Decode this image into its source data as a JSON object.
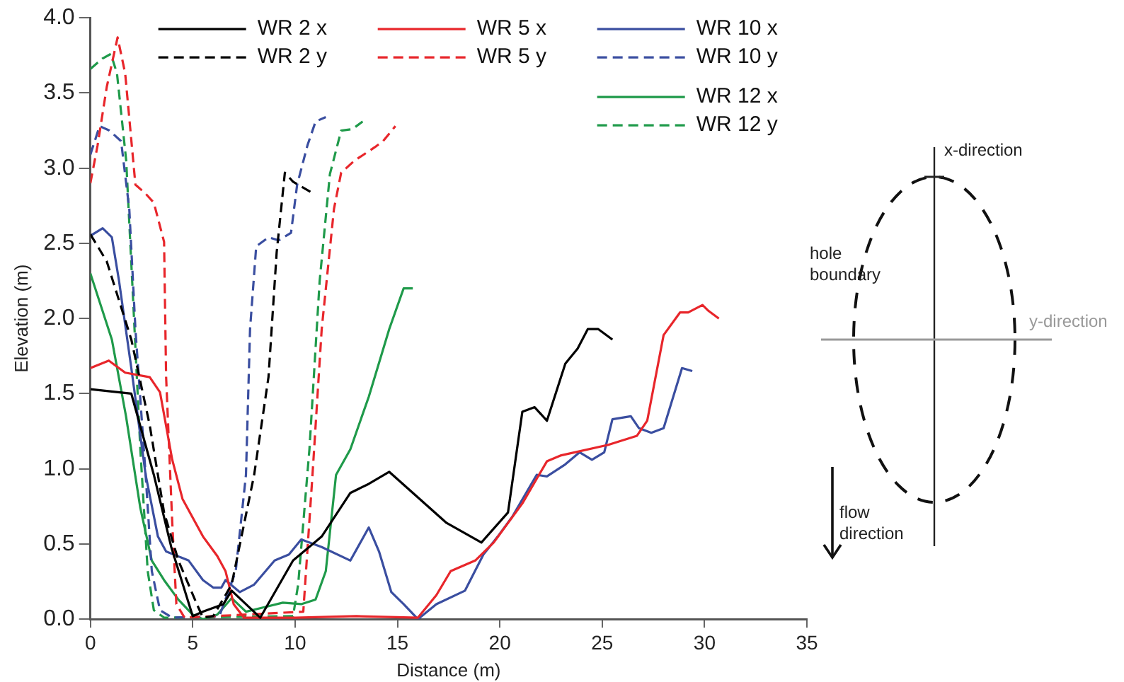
{
  "chart_data": {
    "type": "line",
    "xlabel": "Distance (m)",
    "ylabel": "Elevation (m)",
    "xlim": [
      0,
      35
    ],
    "xticks": [
      0,
      5,
      10,
      15,
      20,
      25,
      30,
      35
    ],
    "ylim": [
      0,
      4
    ],
    "yticks": [
      {
        "value": 0,
        "label": "0.0"
      },
      {
        "value": 0.5,
        "label": "0.5"
      },
      {
        "value": 1,
        "label": "1.0"
      },
      {
        "value": 1.5,
        "label": "1.5"
      },
      {
        "value": 2,
        "label": "2.0"
      },
      {
        "value": 2.5,
        "label": "2.5"
      },
      {
        "value": 3,
        "label": "3.0"
      },
      {
        "value": 3.5,
        "label": "3.5"
      },
      {
        "value": 4,
        "label": "4.0"
      }
    ],
    "grid": false,
    "legend": "top",
    "marker": "none",
    "annotations": [
      "x-direction",
      "hole boundary",
      "y-direction",
      "flow direction"
    ],
    "series": [
      {
        "name": "WR 2 x",
        "color": "#000000",
        "line_style": "solid",
        "x": [
          0,
          2,
          3.1,
          3.95,
          5,
          5.5,
          6.5,
          6.9,
          8.3,
          9.9,
          11.3,
          12.7,
          13.6,
          14.6,
          17.4,
          19.1,
          20.4,
          21.1,
          21.7,
          22.3,
          23.2,
          23.8,
          24.3,
          24.8,
          25.5
        ],
        "values": [
          1.53,
          1.5,
          0.96,
          0.48,
          0.02,
          0.05,
          0.1,
          0.19,
          0.01,
          0.39,
          0.55,
          0.84,
          0.9,
          0.98,
          0.64,
          0.51,
          0.71,
          1.38,
          1.41,
          1.32,
          1.7,
          1.8,
          1.93,
          1.93,
          1.86
        ]
      },
      {
        "name": "WR 2 y",
        "color": "#000000",
        "line_style": "dashed",
        "x": [
          0,
          0.8,
          2,
          2.9,
          3.6,
          4.3,
          5.2,
          5.5,
          6,
          6.9,
          8,
          8.7,
          9.1,
          9.5,
          9.9,
          10.9
        ],
        "values": [
          2.56,
          2.38,
          1.86,
          1.29,
          0.71,
          0.39,
          0.1,
          0.01,
          0.02,
          0.23,
          0.96,
          1.61,
          2.44,
          2.97,
          2.91,
          2.83
        ]
      },
      {
        "name": "WR 5 x",
        "color": "#e8262b",
        "line_style": "solid",
        "x": [
          0,
          0.9,
          1.7,
          2.9,
          3.4,
          4,
          4.5,
          5.5,
          6.2,
          6.6,
          7,
          7.5,
          10,
          13,
          16,
          16.9,
          17.6,
          18.8,
          19.7,
          21.1,
          22.3,
          23,
          25.3,
          26.7,
          27.2,
          28,
          28.8,
          29.2,
          29.9,
          30.2,
          30.7
        ],
        "values": [
          1.67,
          1.72,
          1.64,
          1.61,
          1.51,
          1.06,
          0.8,
          0.55,
          0.42,
          0.32,
          0.1,
          0.01,
          0.01,
          0.02,
          0.01,
          0.16,
          0.32,
          0.39,
          0.51,
          0.77,
          1.05,
          1.09,
          1.16,
          1.22,
          1.32,
          1.89,
          2.04,
          2.04,
          2.09,
          2.05,
          2
        ]
      },
      {
        "name": "WR 5 y",
        "color": "#e8262b",
        "line_style": "dashed",
        "x": [
          0,
          0.35,
          0.8,
          1.33,
          1.7,
          2.2,
          2.7,
          3.1,
          3.6,
          3.7,
          4,
          4.2,
          4.6,
          10.4,
          10.85,
          11.3,
          11.9,
          12.25,
          12.9,
          13.9,
          14.3,
          14.9
        ],
        "values": [
          2.9,
          3.15,
          3.54,
          3.87,
          3.63,
          2.89,
          2.83,
          2.77,
          2.51,
          1.61,
          0.64,
          0.1,
          0.01,
          0.05,
          0.96,
          1.93,
          2.73,
          2.97,
          3.05,
          3.14,
          3.18,
          3.28
        ]
      },
      {
        "name": "WR 10 x",
        "color": "#3a4ea0",
        "line_style": "solid",
        "x": [
          0,
          0.6,
          1.05,
          1.4,
          2,
          2.7,
          3.3,
          3.7,
          4.8,
          5.5,
          6,
          6.4,
          6.6,
          7.3,
          8,
          9,
          9.7,
          10.3,
          11.3,
          12.7,
          13.6,
          14.1,
          14.7,
          15.3,
          16,
          16.9,
          18.3,
          19.2,
          19.9,
          20.6,
          21.8,
          22.3,
          23.2,
          23.9,
          24.5,
          25.1,
          25.5,
          26.4,
          26.8,
          27.4,
          28,
          28.9,
          29.4
        ],
        "values": [
          2.55,
          2.6,
          2.54,
          2.25,
          1.67,
          0.96,
          0.55,
          0.45,
          0.39,
          0.26,
          0.21,
          0.21,
          0.26,
          0.18,
          0.23,
          0.39,
          0.43,
          0.53,
          0.48,
          0.39,
          0.61,
          0.45,
          0.18,
          0.1,
          0,
          0.1,
          0.19,
          0.43,
          0.55,
          0.68,
          0.96,
          0.95,
          1.03,
          1.11,
          1.06,
          1.11,
          1.33,
          1.35,
          1.27,
          1.24,
          1.27,
          1.67,
          1.65
        ]
      },
      {
        "name": "WR 10 y",
        "color": "#3a4ea0",
        "line_style": "dashed",
        "x": [
          0,
          0.45,
          0.93,
          1.5,
          1.9,
          2.2,
          2.7,
          3,
          3.4,
          4,
          6.3,
          7.1,
          7.6,
          7.8,
          8.1,
          8.7,
          9.2,
          9.8,
          10.1,
          10.6,
          11,
          11.5
        ],
        "values": [
          3.09,
          3.28,
          3.25,
          3.18,
          2.73,
          1.93,
          0.96,
          0.32,
          0.06,
          0.01,
          0.02,
          0.32,
          0.96,
          1.93,
          2.48,
          2.54,
          2.52,
          2.57,
          2.89,
          3.15,
          3.31,
          3.34
        ]
      },
      {
        "name": "WR 12 x",
        "color": "#1f9a4a",
        "line_style": "solid",
        "x": [
          0,
          1.05,
          1.74,
          2.44,
          3,
          3.6,
          4.3,
          5,
          5.5,
          6.2,
          6.9,
          7.6,
          8.5,
          9.4,
          10.3,
          11,
          11.5,
          12,
          12.7,
          13.6,
          14.6,
          15.3,
          15.75
        ],
        "values": [
          2.3,
          1.86,
          1.35,
          0.74,
          0.39,
          0.26,
          0.13,
          0.03,
          0,
          0.03,
          0.14,
          0.05,
          0.08,
          0.11,
          0.1,
          0.13,
          0.32,
          0.96,
          1.13,
          1.48,
          1.93,
          2.2,
          2.2
        ]
      },
      {
        "name": "WR 12 y",
        "color": "#1f9a4a",
        "line_style": "dashed",
        "x": [
          0,
          0.6,
          1,
          1.3,
          1.75,
          2.1,
          2.44,
          2.8,
          3.1,
          3.6,
          9.9,
          10.15,
          10.7,
          11.2,
          11.7,
          12.25,
          12.8,
          13.3
        ],
        "values": [
          3.66,
          3.73,
          3.76,
          3.63,
          3.05,
          2.09,
          1.13,
          0.32,
          0.06,
          0.01,
          0.02,
          0.23,
          1.13,
          2.25,
          2.96,
          3.25,
          3.26,
          3.31
        ]
      }
    ]
  }
}
